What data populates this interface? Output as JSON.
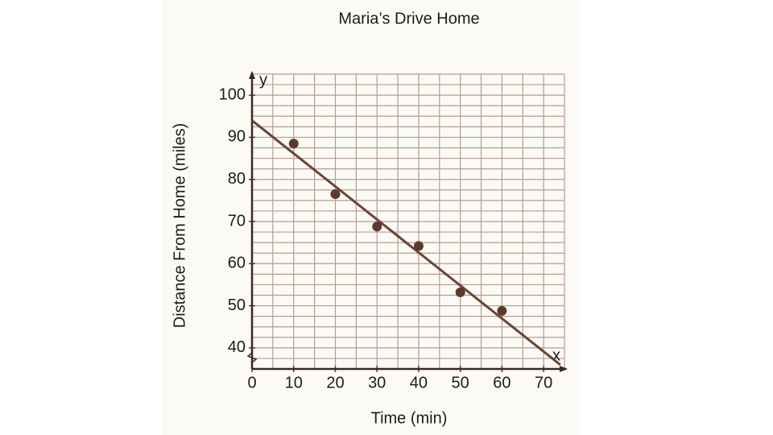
{
  "chart_data": {
    "type": "scatter",
    "title": "Maria’s Drive Home",
    "x_label": "Time (min)",
    "y_label": "Distance From Home (miles)",
    "x_axis_symbol": "x",
    "y_axis_symbol": "y",
    "x": [
      10,
      20,
      30,
      40,
      50,
      60
    ],
    "values": [
      88.5,
      76.5,
      68.8,
      64.2,
      53.2,
      48.8
    ],
    "color": "#5b3a2c",
    "trend_line": {
      "x": [
        0,
        74
      ],
      "y": [
        94,
        36
      ],
      "color": "#6b4433"
    },
    "xlim": [
      0,
      75
    ],
    "ylim": [
      35,
      105
    ],
    "xticks": [
      0,
      10,
      20,
      30,
      40,
      50,
      60,
      70
    ],
    "yticks": [
      40,
      50,
      60,
      70,
      80,
      90,
      100
    ],
    "grid": true,
    "grid_step": [
      5,
      2.5
    ],
    "grid_color": "#b89a94"
  }
}
